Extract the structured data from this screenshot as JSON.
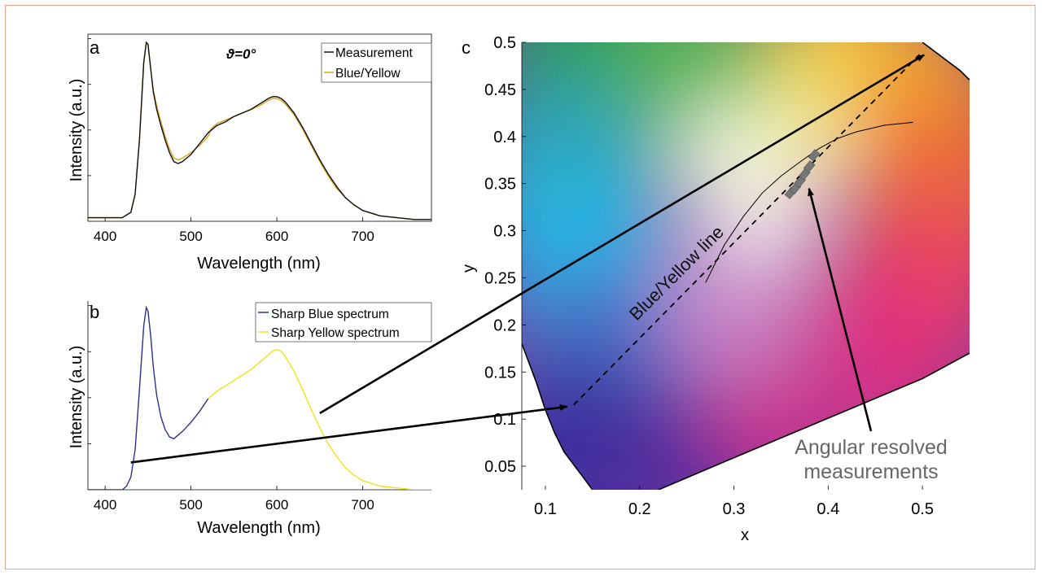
{
  "colors": {
    "frame": "#f0a58a",
    "measurement": "#111111",
    "blue_yellow": "#d9a21b",
    "sharp_blue": "#2b2f8f",
    "sharp_yellow": "#f2e11a",
    "arrow": "#000000",
    "annotation": "#666666"
  },
  "chart_data": [
    {
      "panel": "a",
      "type": "line",
      "title": "ϑ=0°",
      "xlabel": "Wavelength (nm)",
      "ylabel": "Intensity (a.u.)",
      "xlim": [
        380,
        780
      ],
      "xticks": [
        400,
        500,
        600,
        700
      ],
      "ylim": [
        0,
        1
      ],
      "grid": false,
      "legend_position": "top-right",
      "series": [
        {
          "name": "Measurement",
          "x": [
            380,
            420,
            430,
            435,
            440,
            445,
            448,
            450,
            453,
            456,
            460,
            465,
            470,
            475,
            480,
            485,
            490,
            500,
            510,
            520,
            530,
            540,
            550,
            560,
            570,
            580,
            590,
            595,
            600,
            605,
            610,
            620,
            630,
            640,
            650,
            660,
            670,
            680,
            690,
            700,
            720,
            740,
            760,
            780
          ],
          "y": [
            0.02,
            0.02,
            0.05,
            0.15,
            0.45,
            0.88,
            0.99,
            0.98,
            0.85,
            0.72,
            0.62,
            0.53,
            0.45,
            0.38,
            0.33,
            0.32,
            0.33,
            0.37,
            0.43,
            0.49,
            0.53,
            0.55,
            0.58,
            0.6,
            0.62,
            0.65,
            0.68,
            0.69,
            0.69,
            0.68,
            0.66,
            0.6,
            0.52,
            0.43,
            0.34,
            0.26,
            0.19,
            0.13,
            0.09,
            0.06,
            0.03,
            0.02,
            0.01,
            0.01
          ]
        },
        {
          "name": "Blue/Yellow",
          "x": [
            380,
            420,
            430,
            435,
            440,
            445,
            448,
            450,
            453,
            456,
            460,
            465,
            470,
            475,
            480,
            485,
            490,
            500,
            510,
            518,
            521,
            523,
            530,
            540,
            550,
            560,
            570,
            580,
            590,
            595,
            600,
            605,
            610,
            620,
            630,
            640,
            650,
            660,
            670,
            680,
            690,
            700,
            720,
            740,
            760,
            780
          ],
          "y": [
            0.02,
            0.02,
            0.05,
            0.15,
            0.45,
            0.88,
            0.99,
            0.98,
            0.85,
            0.73,
            0.64,
            0.55,
            0.47,
            0.4,
            0.35,
            0.34,
            0.35,
            0.38,
            0.42,
            0.46,
            0.48,
            0.51,
            0.54,
            0.56,
            0.58,
            0.6,
            0.62,
            0.64,
            0.67,
            0.68,
            0.68,
            0.67,
            0.65,
            0.59,
            0.51,
            0.42,
            0.33,
            0.25,
            0.18,
            0.13,
            0.09,
            0.06,
            0.03,
            0.02,
            0.01,
            0.01
          ]
        }
      ]
    },
    {
      "panel": "b",
      "type": "line",
      "xlabel": "Wavelength (nm)",
      "ylabel": "Intensity (a.u.)",
      "xlim": [
        380,
        780
      ],
      "xticks": [
        400,
        500,
        600,
        700
      ],
      "ylim": [
        0,
        1
      ],
      "grid": false,
      "legend_position": "top-right",
      "series": [
        {
          "name": "Sharp Blue spectrum",
          "x": [
            380,
            420,
            425,
            430,
            435,
            440,
            445,
            448,
            450,
            453,
            456,
            460,
            465,
            470,
            475,
            480,
            485,
            490,
            500,
            510,
            520
          ],
          "y": [
            0.0,
            0.0,
            0.02,
            0.07,
            0.22,
            0.55,
            0.9,
            1.0,
            0.98,
            0.85,
            0.68,
            0.52,
            0.4,
            0.33,
            0.29,
            0.28,
            0.3,
            0.32,
            0.37,
            0.43,
            0.5
          ]
        },
        {
          "name": "Sharp Yellow spectrum",
          "x": [
            520,
            530,
            540,
            550,
            560,
            570,
            580,
            590,
            595,
            600,
            605,
            610,
            620,
            630,
            640,
            650,
            660,
            670,
            680,
            690,
            700,
            720,
            740,
            760,
            780
          ],
          "y": [
            0.5,
            0.54,
            0.57,
            0.6,
            0.63,
            0.66,
            0.7,
            0.74,
            0.76,
            0.77,
            0.76,
            0.73,
            0.65,
            0.55,
            0.44,
            0.34,
            0.25,
            0.18,
            0.12,
            0.08,
            0.05,
            0.02,
            0.01,
            0.0,
            0.0
          ]
        }
      ]
    },
    {
      "panel": "c",
      "type": "scatter",
      "xlabel": "x",
      "ylabel": "y",
      "xlim": [
        0.075,
        0.55
      ],
      "ylim": [
        0.025,
        0.5
      ],
      "xticks": [
        0.1,
        0.2,
        0.3,
        0.4,
        0.5
      ],
      "yticks": [
        0.05,
        0.1,
        0.15,
        0.2,
        0.25,
        0.3,
        0.35,
        0.4,
        0.45,
        0.5
      ],
      "planckian_locus": {
        "x": [
          0.27,
          0.29,
          0.31,
          0.33,
          0.35,
          0.37,
          0.39,
          0.41,
          0.43,
          0.46,
          0.49
        ],
        "y": [
          0.245,
          0.285,
          0.315,
          0.34,
          0.358,
          0.373,
          0.387,
          0.398,
          0.405,
          0.412,
          0.415
        ]
      },
      "blue_yellow_line": {
        "x": [
          0.13,
          0.5
        ],
        "y": [
          0.115,
          0.49
        ]
      },
      "spectral_locus_left": {
        "x": [
          0.075,
          0.09,
          0.1,
          0.11,
          0.12,
          0.135,
          0.15
        ],
        "y": [
          0.18,
          0.14,
          0.11,
          0.085,
          0.065,
          0.045,
          0.025
        ]
      },
      "spectral_locus_top": {
        "x": [
          0.5,
          0.52,
          0.54,
          0.55
        ],
        "y": [
          0.5,
          0.485,
          0.47,
          0.46
        ]
      },
      "purple_line": {
        "x": [
          0.22,
          0.3,
          0.4,
          0.5,
          0.55
        ],
        "y": [
          0.025,
          0.059,
          0.101,
          0.143,
          0.17
        ]
      },
      "measurements_cluster": {
        "x": [
          0.36,
          0.365,
          0.37,
          0.375,
          0.38,
          0.385
        ],
        "y": [
          0.34,
          0.345,
          0.352,
          0.36,
          0.368,
          0.38
        ]
      },
      "annotations": [
        "Blue/Yellow line",
        "Angular resolved",
        "measurements"
      ]
    }
  ],
  "labels": {
    "panel_a": "a",
    "panel_b": "b",
    "panel_c": "c"
  }
}
